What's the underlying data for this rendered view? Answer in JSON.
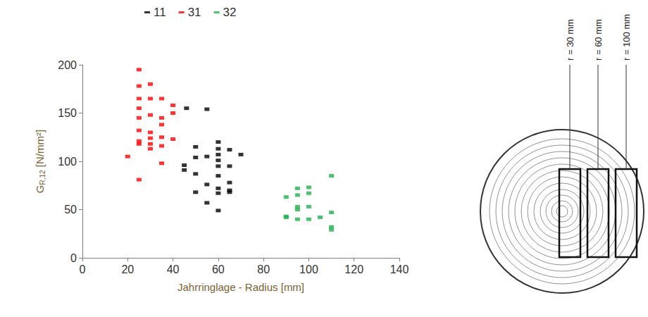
{
  "chart_data": {
    "type": "scatter",
    "xlabel": "Jahrringlage - Radius [mm]",
    "ylabel": {
      "main": "G",
      "sub": "R,12",
      "rest": " [N/mm²]"
    },
    "xlim": [
      0,
      140
    ],
    "xticks": [
      0,
      20,
      40,
      60,
      80,
      100,
      120,
      140
    ],
    "ylim": [
      0,
      200
    ],
    "yticks": [
      0,
      50,
      100,
      150,
      200
    ],
    "grid": false,
    "legend": "top",
    "marker": "square",
    "series": [
      {
        "name": "11",
        "color": "#000000",
        "x": [
          45,
          45,
          46,
          50,
          50,
          50,
          50,
          55,
          55,
          55,
          55,
          60,
          60,
          60,
          60,
          60,
          60,
          60,
          60,
          60,
          65,
          65,
          65,
          65,
          65,
          70
        ],
        "values": [
          96,
          91,
          155,
          115,
          104,
          87,
          68,
          154,
          105,
          76,
          57,
          120,
          113,
          107,
          101,
          95,
          85,
          72,
          67,
          49,
          112,
          95,
          78,
          68,
          70,
          107
        ]
      },
      {
        "name": "31",
        "color": "#ff0000",
        "x": [
          20,
          25,
          25,
          25,
          25,
          25,
          25,
          25,
          25,
          25,
          30,
          30,
          30,
          30,
          30,
          30,
          30,
          35,
          35,
          35,
          35,
          35,
          35,
          40,
          40,
          40
        ],
        "values": [
          105,
          195,
          178,
          165,
          155,
          145,
          132,
          121,
          118,
          81,
          180,
          165,
          148,
          130,
          124,
          118,
          113,
          165,
          145,
          138,
          125,
          116,
          98,
          158,
          150,
          123
        ]
      },
      {
        "name": "32",
        "color": "#22b14c",
        "x": [
          90,
          90,
          90,
          95,
          95,
          95,
          95,
          95,
          100,
          100,
          100,
          100,
          105,
          110,
          110,
          110,
          110
        ],
        "values": [
          63,
          43,
          42,
          72,
          65,
          53,
          50,
          40,
          73,
          67,
          53,
          40,
          42,
          85,
          47,
          32,
          29
        ]
      }
    ]
  },
  "diagram": {
    "labels": [
      "r = 30 mm",
      "r = 60 mm",
      "r = 100 mm"
    ]
  }
}
